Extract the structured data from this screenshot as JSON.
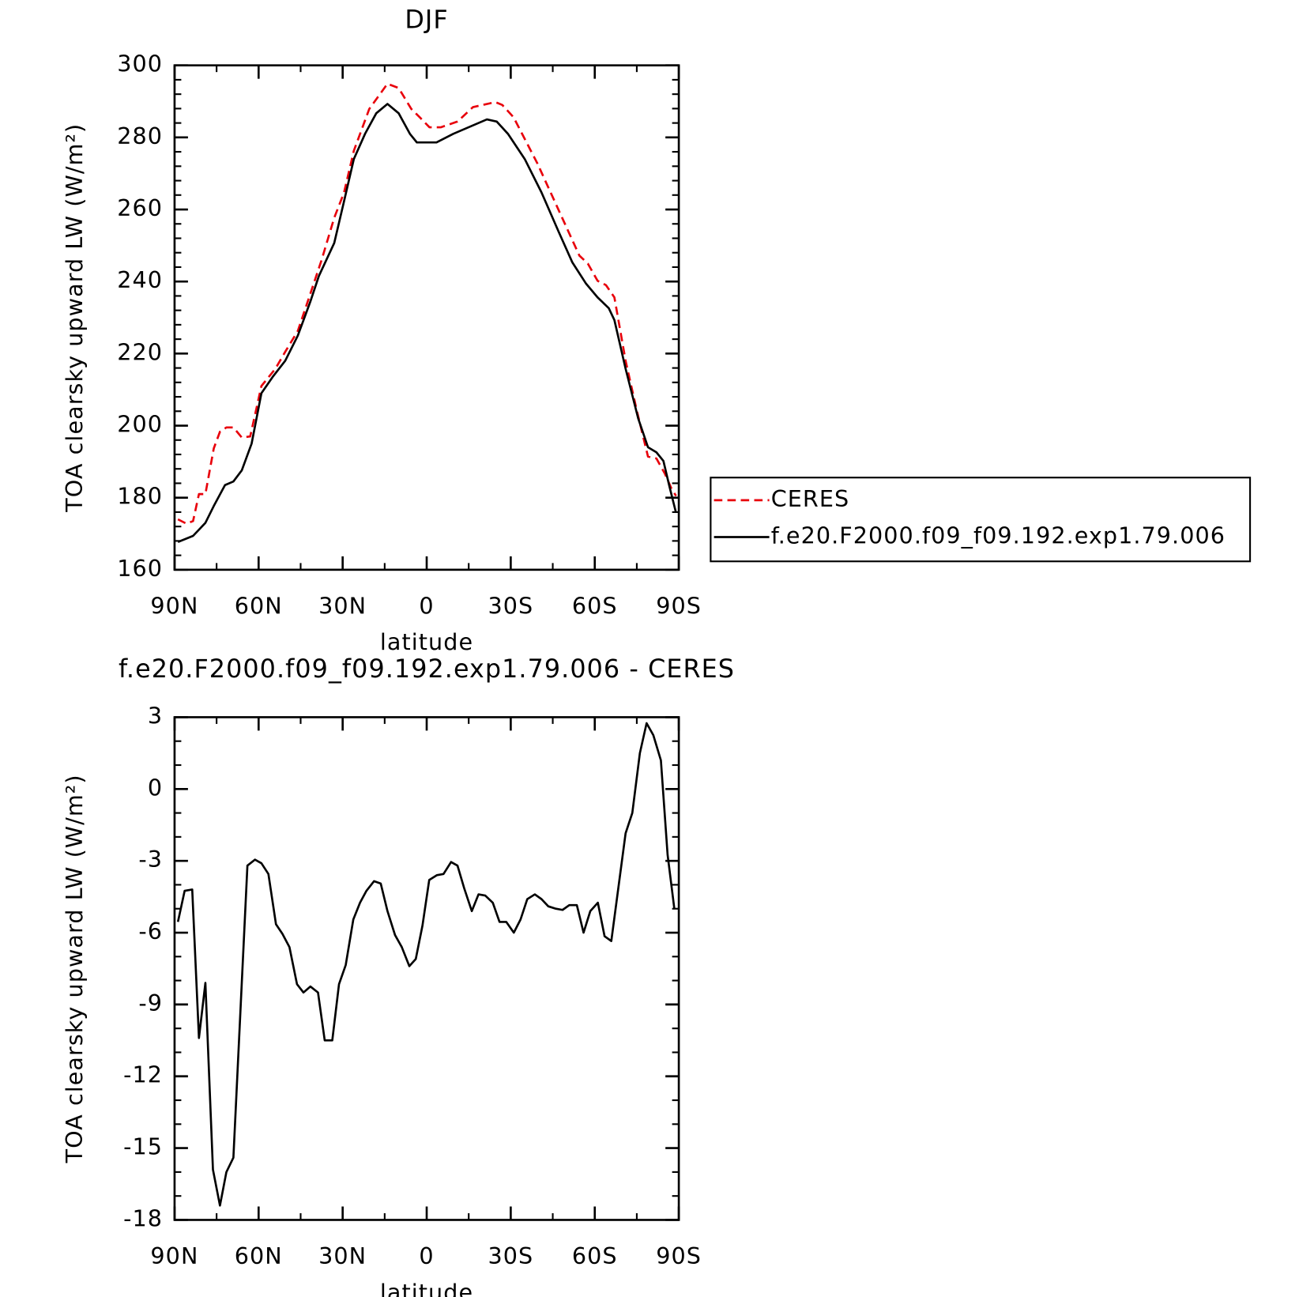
{
  "chart_data": [
    {
      "type": "line",
      "title": "DJF",
      "x_label": "latitude",
      "y_label": "TOA clearsky upward LW (W/m²)",
      "xlim": [
        90,
        -90
      ],
      "xticks": [
        {
          "value": 90,
          "label": "90N"
        },
        {
          "value": 60,
          "label": "60N"
        },
        {
          "value": 30,
          "label": "30N"
        },
        0,
        {
          "value": -30,
          "label": "30S"
        },
        {
          "value": -60,
          "label": "60S"
        },
        {
          "value": -90,
          "label": "90S"
        }
      ],
      "ylim": [
        160,
        300
      ],
      "yticks": [
        160,
        180,
        200,
        220,
        240,
        260,
        280,
        300
      ],
      "legend": "right",
      "series": [
        {
          "name": "CERES",
          "color": "#e8000b",
          "line_style": "dashed",
          "x": [
            88.8,
            85.8,
            83.4,
            81.3,
            79,
            76,
            73.8,
            71.5,
            69,
            66,
            63,
            59,
            54,
            50.5,
            46,
            41.5,
            37.5,
            33,
            29.5,
            26,
            20.5,
            14,
            10,
            5.5,
            2.5,
            -1,
            -5,
            -11,
            -16.5,
            -24.5,
            -27,
            -31,
            -39.5,
            -47,
            -54.5,
            -57.5,
            -61,
            -64,
            -67,
            -71,
            -75,
            -79,
            -82,
            -85,
            -87.4,
            -89
          ],
          "values": [
            174,
            172.8,
            173.5,
            181,
            181,
            193.7,
            198.3,
            199.5,
            199.5,
            196.7,
            197,
            211,
            215.8,
            220.5,
            226.3,
            236.7,
            246,
            257.7,
            264.7,
            276.3,
            287.9,
            294.9,
            293.7,
            287.9,
            285.6,
            282.8,
            282.8,
            284.4,
            288.4,
            289.8,
            289,
            285.6,
            272.8,
            260,
            247.2,
            245,
            240.2,
            239,
            235.6,
            218,
            204.2,
            191.4,
            190.9,
            186.7,
            182.5,
            180.5
          ]
        },
        {
          "name": "f.e20.F2000.f09_f09.192.exp1.79.006",
          "color": "#000000",
          "line_style": "solid",
          "x": [
            88.8,
            83.4,
            79,
            76,
            72,
            69,
            66,
            62.5,
            59,
            55,
            50.5,
            46,
            41.5,
            38.5,
            33,
            29.5,
            26,
            22,
            18,
            14,
            10,
            6,
            3.5,
            -3.5,
            -9.5,
            -15.5,
            -21.5,
            -25,
            -29,
            -35,
            -41,
            -47,
            -52,
            -56.8,
            -61,
            -65,
            -67,
            -71,
            -75.5,
            -79,
            -82,
            -84.5,
            -86.6,
            -89
          ],
          "values": [
            167.7,
            169.4,
            173,
            177.7,
            183.5,
            184.5,
            187.6,
            195,
            209,
            213.5,
            218,
            225,
            234.5,
            241.5,
            250.7,
            262.3,
            274,
            281,
            286.7,
            289.3,
            286.7,
            281,
            278.6,
            278.6,
            281,
            283,
            285,
            284.4,
            281,
            274,
            264.7,
            254,
            245.3,
            239.5,
            235.6,
            232.6,
            229.3,
            215.8,
            202,
            194,
            192.6,
            190.2,
            183.3,
            175.8
          ]
        }
      ]
    },
    {
      "type": "line",
      "title": "f.e20.F2000.f09_f09.192.exp1.79.006 - CERES",
      "x_label": "latitude",
      "y_label": "TOA clearsky upward LW (W/m²)",
      "xlim": [
        90,
        -90
      ],
      "xticks": [
        {
          "value": 90,
          "label": "90N"
        },
        {
          "value": 60,
          "label": "60N"
        },
        {
          "value": 30,
          "label": "30N"
        },
        0,
        {
          "value": -30,
          "label": "30S"
        },
        {
          "value": -60,
          "label": "60S"
        },
        {
          "value": -90,
          "label": "90S"
        }
      ],
      "ylim": [
        -18,
        3
      ],
      "yticks": [
        -18,
        -15,
        -12,
        -9,
        -6,
        -3,
        0,
        3
      ],
      "series": [
        {
          "color": "#000000",
          "line_style": "solid",
          "x": [
            88.8,
            86.4,
            83.7,
            81.3,
            79,
            76.3,
            73.8,
            71.5,
            69,
            64,
            61.3,
            59,
            56.5,
            53.8,
            51.5,
            49,
            46.3,
            44,
            41.5,
            38.8,
            36.4,
            33.7,
            31.3,
            28.9,
            26.2,
            23.8,
            21.5,
            18.8,
            16.4,
            14,
            11.3,
            8.9,
            6.2,
            3.9,
            1.5,
            -0.9,
            -3.6,
            -6,
            -8.7,
            -11,
            -13.4,
            -16.1,
            -18.5,
            -20.9,
            -23.6,
            -26,
            -28.4,
            -31.1,
            -33.5,
            -35.9,
            -38.6,
            -41,
            -43.4,
            -46.1,
            -48.5,
            -50.9,
            -53.6,
            -56,
            -58.4,
            -61.1,
            -63.5,
            -65.9,
            -71,
            -73.4,
            -76.1,
            -78.5,
            -80.9,
            -83.6,
            -86,
            -88.4
          ],
          "values": [
            -5.55,
            -4.25,
            -4.2,
            -10.4,
            -8.1,
            -15.9,
            -17.4,
            -16,
            -15.4,
            -3.2,
            -2.95,
            -3.1,
            -3.55,
            -5.65,
            -6.05,
            -6.6,
            -8.15,
            -8.5,
            -8.25,
            -8.5,
            -10.5,
            -10.5,
            -8.15,
            -7.35,
            -5.45,
            -4.75,
            -4.25,
            -3.85,
            -3.95,
            -5.1,
            -6.1,
            -6.6,
            -7.4,
            -7.1,
            -5.7,
            -3.8,
            -3.6,
            -3.55,
            -3.05,
            -3.2,
            -4.15,
            -5.1,
            -4.4,
            -4.45,
            -4.75,
            -5.55,
            -5.55,
            -6,
            -5.45,
            -4.6,
            -4.4,
            -4.6,
            -4.9,
            -5,
            -5.05,
            -4.85,
            -4.85,
            -6,
            -5.1,
            -4.75,
            -6.15,
            -6.35,
            -1.85,
            -1,
            1.5,
            2.75,
            2.25,
            1.2,
            -2.75,
            -5
          ]
        }
      ]
    }
  ]
}
